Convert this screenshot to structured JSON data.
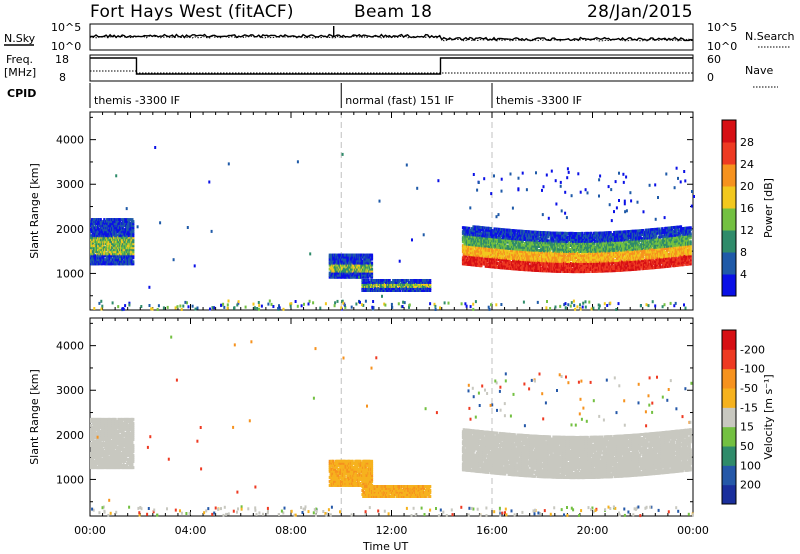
{
  "header": {
    "station": "Fort Hays West (fitACF)",
    "beam": "Beam 18",
    "date": "28/Jan/2015"
  },
  "side_labels": {
    "nsky": "N.Sky",
    "nsearch": "N.Search",
    "freq": "Freq.",
    "freq_unit": "[MHz]",
    "nave": "Nave",
    "cpid": "CPID",
    "nsky_ticks": [
      "10^5",
      "10^0"
    ],
    "freq_ticks": [
      "18",
      "8"
    ],
    "nave_ticks": [
      "60",
      "0"
    ]
  },
  "cpid_segments": [
    {
      "label": "themis -3300 IF",
      "start": 0.0,
      "end": 10.0
    },
    {
      "label": "normal (fast) 151 IF",
      "start": 10.0,
      "end": 16.0
    },
    {
      "label": "themis -3300 IF",
      "start": 16.0,
      "end": 24.0
    }
  ],
  "axes": {
    "xlabel": "Time UT",
    "ylabel": "Slant Range [km]",
    "xticks": [
      "00:00",
      "04:00",
      "08:00",
      "12:00",
      "16:00",
      "20:00",
      "00:00"
    ],
    "xtick_hours": [
      0,
      4,
      8,
      12,
      16,
      20,
      24
    ],
    "yticks": [
      1000,
      2000,
      3000,
      4000
    ],
    "xlim_hours": [
      0,
      24
    ],
    "ylim_km": [
      180,
      4620
    ]
  },
  "chart_data": [
    {
      "type": "heatmap",
      "name": "Power",
      "colorbar_label": "Power [dB]",
      "colorbar_ticks": [
        "4",
        "8",
        "12",
        "16",
        "20",
        "24",
        "28"
      ],
      "colorbar_colors": [
        "#0a10e6",
        "#1f5aa8",
        "#2f8b6a",
        "#73c041",
        "#f2c81e",
        "#f6921e",
        "#ee3a22",
        "#d60f14"
      ],
      "ylim": [
        180,
        4620
      ],
      "regions": [
        {
          "t0": 0.0,
          "t1": 1.7,
          "r0": 1250,
          "r1": 2250,
          "core": [
            1450,
            1850
          ]
        },
        {
          "t0": 9.5,
          "t1": 11.2,
          "r0": 950,
          "r1": 1450,
          "core": [
            1050,
            1250
          ]
        },
        {
          "t0": 10.8,
          "t1": 13.5,
          "r0": 650,
          "r1": 900,
          "core": [
            700,
            800
          ]
        },
        {
          "t0": 14.8,
          "t1": 23.9,
          "r0": 1100,
          "r1": 2200,
          "core": [
            1200,
            1700
          ]
        }
      ]
    },
    {
      "type": "heatmap",
      "name": "Velocity",
      "colorbar_label": "Velocity [m s⁻¹]",
      "colorbar_ticks": [
        "200",
        "100",
        "50",
        "15",
        "-15",
        "-50",
        "-100",
        "-200"
      ],
      "colorbar_colors": [
        "#1a2f9c",
        "#2558a8",
        "#2f8b6a",
        "#73c041",
        "#c8c8c0",
        "#f6b21e",
        "#f6921e",
        "#ee3a22",
        "#d60f14"
      ],
      "ylim": [
        180,
        4620
      ],
      "regions": [
        {
          "t0": 0.0,
          "t1": 1.7,
          "r0": 1300,
          "r1": 2400,
          "value": "ground"
        },
        {
          "t0": 9.5,
          "t1": 11.2,
          "r0": 900,
          "r1": 1450,
          "value": "-50"
        },
        {
          "t0": 10.8,
          "t1": 13.5,
          "r0": 650,
          "r1": 900,
          "value": "-50"
        },
        {
          "t0": 14.8,
          "t1": 23.9,
          "r0": 1100,
          "r1": 2250,
          "value": "ground"
        }
      ]
    }
  ]
}
